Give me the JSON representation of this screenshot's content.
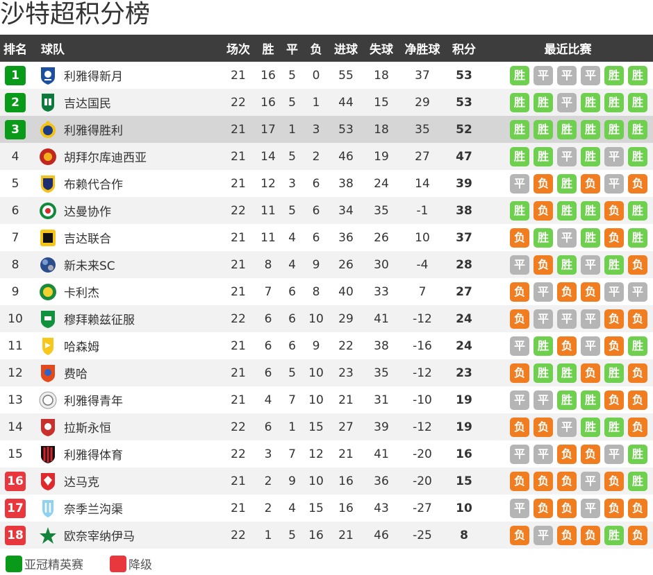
{
  "title": "沙特超积分榜",
  "headers": {
    "rank": "排名",
    "team": "球队",
    "played": "场次",
    "won": "胜",
    "drawn": "平",
    "lost": "负",
    "gf": "进球",
    "ga": "失球",
    "gd": "净胜球",
    "pts": "积分",
    "form": "最近比赛"
  },
  "form_colors": {
    "胜": "#6fcf4e",
    "平": "#b5b5b5",
    "负": "#f07d1f"
  },
  "zone_colors": {
    "acl": "#0a9a1a",
    "rel": "#e8383d"
  },
  "rows": [
    {
      "rank": "1",
      "zone": "acl",
      "team": "利雅得新月",
      "logo": "al-hilal-logo",
      "played": "21",
      "won": "16",
      "drawn": "5",
      "lost": "0",
      "gf": "55",
      "ga": "18",
      "gd": "37",
      "pts": "53",
      "form": [
        "胜",
        "平",
        "平",
        "平",
        "胜",
        "胜"
      ]
    },
    {
      "rank": "2",
      "zone": "acl",
      "team": "吉达国民",
      "logo": "al-ahli-logo",
      "played": "22",
      "won": "16",
      "drawn": "5",
      "lost": "1",
      "gf": "44",
      "ga": "15",
      "gd": "29",
      "pts": "53",
      "form": [
        "胜",
        "胜",
        "平",
        "胜",
        "胜",
        "胜"
      ]
    },
    {
      "rank": "3",
      "zone": "acl",
      "highlight": true,
      "team": "利雅得胜利",
      "logo": "al-nassr-logo",
      "played": "21",
      "won": "17",
      "drawn": "1",
      "lost": "3",
      "gf": "53",
      "ga": "18",
      "gd": "35",
      "pts": "52",
      "form": [
        "胜",
        "胜",
        "胜",
        "胜",
        "胜",
        "胜"
      ]
    },
    {
      "rank": "4",
      "zone": "",
      "team": "胡拜尔库迪西亚",
      "logo": "al-qadsiah-logo",
      "played": "21",
      "won": "14",
      "drawn": "5",
      "lost": "2",
      "gf": "46",
      "ga": "19",
      "gd": "27",
      "pts": "47",
      "form": [
        "胜",
        "胜",
        "平",
        "胜",
        "平",
        "胜"
      ]
    },
    {
      "rank": "5",
      "zone": "",
      "team": "布赖代合作",
      "logo": "al-taawoun-logo",
      "played": "21",
      "won": "12",
      "drawn": "3",
      "lost": "6",
      "gf": "38",
      "ga": "24",
      "gd": "14",
      "pts": "39",
      "form": [
        "平",
        "负",
        "胜",
        "负",
        "平",
        "负"
      ]
    },
    {
      "rank": "6",
      "zone": "",
      "team": "达曼协作",
      "logo": "al-ettifaq-logo",
      "played": "22",
      "won": "11",
      "drawn": "5",
      "lost": "6",
      "gf": "34",
      "ga": "35",
      "gd": "-1",
      "pts": "38",
      "form": [
        "胜",
        "负",
        "胜",
        "胜",
        "负",
        "胜"
      ]
    },
    {
      "rank": "7",
      "zone": "",
      "team": "吉达联合",
      "logo": "al-ittihad-logo",
      "played": "21",
      "won": "11",
      "drawn": "4",
      "lost": "6",
      "gf": "36",
      "ga": "26",
      "gd": "10",
      "pts": "37",
      "form": [
        "负",
        "胜",
        "平",
        "胜",
        "负",
        "胜"
      ]
    },
    {
      "rank": "8",
      "zone": "",
      "team": "新未来SC",
      "logo": "neom-sc-logo",
      "played": "21",
      "won": "8",
      "drawn": "4",
      "lost": "9",
      "gf": "26",
      "ga": "30",
      "gd": "-4",
      "pts": "28",
      "form": [
        "平",
        "负",
        "胜",
        "平",
        "胜",
        "负"
      ]
    },
    {
      "rank": "9",
      "zone": "",
      "team": "卡利杰",
      "logo": "al-khaleej-logo",
      "played": "21",
      "won": "7",
      "drawn": "6",
      "lost": "8",
      "gf": "40",
      "ga": "33",
      "gd": "7",
      "pts": "27",
      "form": [
        "负",
        "平",
        "负",
        "负",
        "平",
        "平"
      ]
    },
    {
      "rank": "10",
      "zone": "",
      "team": "穆拜赖兹征服",
      "logo": "al-fateh-logo",
      "played": "22",
      "won": "6",
      "drawn": "6",
      "lost": "10",
      "gf": "29",
      "ga": "41",
      "gd": "-12",
      "pts": "24",
      "form": [
        "负",
        "平",
        "平",
        "平",
        "负",
        "负"
      ]
    },
    {
      "rank": "11",
      "zone": "",
      "team": "哈森姆",
      "logo": "al-hazem-logo",
      "played": "21",
      "won": "6",
      "drawn": "6",
      "lost": "9",
      "gf": "22",
      "ga": "38",
      "gd": "-16",
      "pts": "24",
      "form": [
        "平",
        "胜",
        "负",
        "平",
        "负",
        "胜"
      ]
    },
    {
      "rank": "12",
      "zone": "",
      "team": "费哈",
      "logo": "al-feiha-logo",
      "played": "21",
      "won": "6",
      "drawn": "5",
      "lost": "10",
      "gf": "23",
      "ga": "35",
      "gd": "-12",
      "pts": "23",
      "form": [
        "负",
        "胜",
        "胜",
        "负",
        "胜",
        "负"
      ]
    },
    {
      "rank": "13",
      "zone": "",
      "team": "利雅得青年",
      "logo": "al-shabab-logo",
      "played": "21",
      "won": "4",
      "drawn": "7",
      "lost": "10",
      "gf": "21",
      "ga": "31",
      "gd": "-10",
      "pts": "19",
      "form": [
        "平",
        "平",
        "胜",
        "胜",
        "负",
        "负"
      ]
    },
    {
      "rank": "14",
      "zone": "",
      "team": "拉斯永恒",
      "logo": "al-kholood-logo",
      "played": "22",
      "won": "6",
      "drawn": "1",
      "lost": "15",
      "gf": "27",
      "ga": "39",
      "gd": "-12",
      "pts": "19",
      "form": [
        "负",
        "负",
        "平",
        "胜",
        "胜",
        "负"
      ]
    },
    {
      "rank": "15",
      "zone": "",
      "team": "利雅得体育",
      "logo": "al-riyadh-logo",
      "played": "22",
      "won": "3",
      "drawn": "7",
      "lost": "12",
      "gf": "21",
      "ga": "41",
      "gd": "-20",
      "pts": "16",
      "form": [
        "平",
        "平",
        "负",
        "负",
        "平",
        "胜"
      ]
    },
    {
      "rank": "16",
      "zone": "rel",
      "team": "达马克",
      "logo": "damac-logo",
      "played": "21",
      "won": "2",
      "drawn": "9",
      "lost": "10",
      "gf": "16",
      "ga": "36",
      "gd": "-20",
      "pts": "15",
      "form": [
        "负",
        "负",
        "负",
        "平",
        "负",
        "胜"
      ]
    },
    {
      "rank": "17",
      "zone": "rel",
      "team": "奈季兰沟渠",
      "logo": "al-akhdoud-logo",
      "played": "21",
      "won": "2",
      "drawn": "4",
      "lost": "15",
      "gf": "16",
      "ga": "43",
      "gd": "-27",
      "pts": "10",
      "form": [
        "平",
        "负",
        "负",
        "平",
        "负",
        "负"
      ]
    },
    {
      "rank": "18",
      "zone": "rel",
      "team": "欧奈宰纳伊马",
      "logo": "al-najma-logo",
      "played": "22",
      "won": "1",
      "drawn": "5",
      "lost": "16",
      "gf": "21",
      "ga": "46",
      "gd": "-25",
      "pts": "8",
      "form": [
        "负",
        "平",
        "负",
        "负",
        "胜",
        "负"
      ]
    }
  ],
  "legend": {
    "acl": "亚冠精英赛",
    "rel": "降级"
  }
}
